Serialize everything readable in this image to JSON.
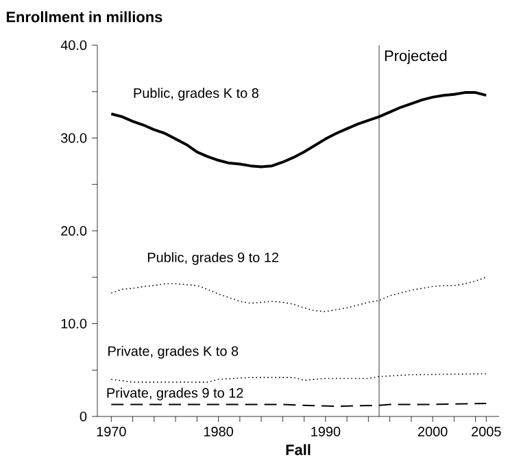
{
  "chart_data": {
    "type": "line",
    "ylabel": "Enrollment in millions",
    "xlabel": "Fall",
    "xlim": [
      1968.7,
      2006.2
    ],
    "ylim": [
      0,
      40
    ],
    "xticks": [
      {
        "value": 1970,
        "label": "1970"
      },
      {
        "value": 1972,
        "label": null
      },
      {
        "value": 1974,
        "label": null
      },
      {
        "value": 1976,
        "label": null
      },
      {
        "value": 1978,
        "label": null
      },
      {
        "value": 1980,
        "label": "1980"
      },
      {
        "value": 1982,
        "label": null
      },
      {
        "value": 1984,
        "label": null
      },
      {
        "value": 1986,
        "label": null
      },
      {
        "value": 1988,
        "label": null
      },
      {
        "value": 1990,
        "label": "1990"
      },
      {
        "value": 1992,
        "label": null
      },
      {
        "value": 1994,
        "label": null
      },
      {
        "value": 1996,
        "label": null
      },
      {
        "value": 1998,
        "label": null
      },
      {
        "value": 2000,
        "label": "2000"
      },
      {
        "value": 2002,
        "label": null
      },
      {
        "value": 2004,
        "label": null
      },
      {
        "value": 2005,
        "label": "2005"
      }
    ],
    "yticks": [
      0,
      {
        "value": 5,
        "label": null
      },
      {
        "value": 10,
        "label": "10.0"
      },
      {
        "value": 15,
        "label": null
      },
      {
        "value": 20,
        "label": "20.0"
      },
      {
        "value": 25,
        "label": null
      },
      {
        "value": 30,
        "label": "30.0"
      },
      {
        "value": 35,
        "label": null
      },
      {
        "value": 40,
        "label": "40.0"
      }
    ],
    "ref_lines": [
      {
        "axis": "x",
        "value": 1995,
        "label": "Projected",
        "color": "#000000"
      }
    ],
    "series": [
      {
        "name": "Public, grades K to 8",
        "color": "#000000",
        "line_style": "solid",
        "x": [
          1970,
          1971,
          1972,
          1973,
          1974,
          1975,
          1976,
          1977,
          1978,
          1979,
          1980,
          1981,
          1982,
          1983,
          1984,
          1985,
          1986,
          1987,
          1988,
          1989,
          1990,
          1991,
          1992,
          1993,
          1994,
          1995,
          1996,
          1997,
          1998,
          1999,
          2000,
          2001,
          2002,
          2003,
          2004,
          2005
        ],
        "values": [
          32.6,
          32.3,
          31.8,
          31.4,
          30.9,
          30.5,
          29.9,
          29.3,
          28.5,
          28.0,
          27.6,
          27.3,
          27.2,
          27.0,
          26.9,
          27.0,
          27.4,
          27.9,
          28.5,
          29.2,
          29.9,
          30.5,
          31.0,
          31.5,
          31.9,
          32.3,
          32.8,
          33.3,
          33.7,
          34.1,
          34.4,
          34.6,
          34.7,
          34.9,
          34.9,
          34.6
        ]
      },
      {
        "name": "Public, grades 9 to 12",
        "color": "#000000",
        "line_style": "dotted",
        "x": [
          1970,
          1971,
          1972,
          1973,
          1974,
          1975,
          1976,
          1977,
          1978,
          1979,
          1980,
          1981,
          1982,
          1983,
          1984,
          1985,
          1986,
          1987,
          1988,
          1989,
          1990,
          1991,
          1992,
          1993,
          1994,
          1995,
          1996,
          1997,
          1998,
          1999,
          2000,
          2001,
          2002,
          2003,
          2004,
          2005
        ],
        "values": [
          13.3,
          13.7,
          13.8,
          14.0,
          14.1,
          14.3,
          14.3,
          14.2,
          14.1,
          13.7,
          13.2,
          12.8,
          12.4,
          12.2,
          12.3,
          12.4,
          12.3,
          12.1,
          11.7,
          11.4,
          11.3,
          11.5,
          11.7,
          12.0,
          12.3,
          12.5,
          13.0,
          13.3,
          13.6,
          13.8,
          14.0,
          14.1,
          14.1,
          14.3,
          14.6,
          15.0
        ]
      },
      {
        "name": "Private, grades K to 8",
        "color": "#000000",
        "line_style": "dotted",
        "x": [
          1970,
          1972,
          1975,
          1979,
          1980,
          1983,
          1987,
          1988,
          1990,
          1994,
          1995,
          1998,
          2005
        ],
        "values": [
          4.0,
          3.7,
          3.7,
          3.7,
          4.0,
          4.2,
          4.2,
          3.9,
          4.1,
          4.1,
          4.3,
          4.5,
          4.6
        ]
      },
      {
        "name": "Private, grades 9 to 12",
        "color": "#000000",
        "line_style": "dashed",
        "x": [
          1970,
          1975,
          1980,
          1986,
          1988,
          1991,
          1995,
          1996,
          2000,
          2005
        ],
        "values": [
          1.3,
          1.3,
          1.3,
          1.3,
          1.2,
          1.1,
          1.2,
          1.3,
          1.3,
          1.4
        ]
      }
    ]
  }
}
